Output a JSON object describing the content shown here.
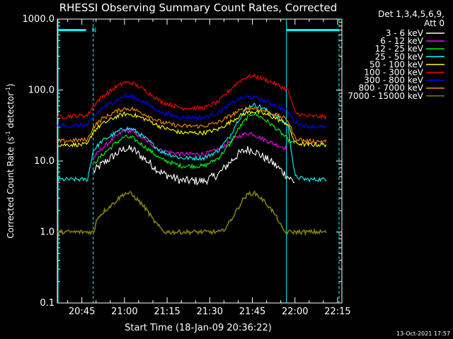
{
  "chart_data": {
    "type": "line",
    "title": "RHESSI Observing Summary Count Rates, Corrected",
    "xlabel": "Start Time (18-Jan-09 20:36:22)",
    "ylabel_main": "Corrected Count Rate (s",
    "ylabel_sup1": "-1",
    "ylabel_mid": " detector",
    "ylabel_sup2": "-1",
    "ylabel_end": ")",
    "yscale": "log",
    "ylim": [
      0.1,
      1000
    ],
    "xlim_minutes": [
      36.37,
      136.5
    ],
    "x_ticks": [
      {
        "label": "20:45",
        "m": 45
      },
      {
        "label": "21:00",
        "m": 60
      },
      {
        "label": "21:15",
        "m": 75
      },
      {
        "label": "21:30",
        "m": 90
      },
      {
        "label": "21:45",
        "m": 105
      },
      {
        "label": "22:00",
        "m": 120
      },
      {
        "label": "22:15",
        "m": 135
      }
    ],
    "y_ticks": [
      {
        "label": "1000.0",
        "v": 1000
      },
      {
        "label": "100.0",
        "v": 100
      },
      {
        "label": "10.0",
        "v": 10
      },
      {
        "label": "1.0",
        "v": 1
      },
      {
        "label": "0.1",
        "v": 0.1
      }
    ],
    "legend_header": [
      "Det 1,3,4,5,6,9,",
      "Att 0"
    ],
    "legend_position": "right",
    "series": [
      {
        "name": "3 - 6 keV",
        "color": "#ffffff",
        "x": [
          36.5,
          47,
          49,
          52,
          57,
          60,
          63,
          68,
          73,
          80,
          88,
          93,
          97,
          100,
          103,
          105,
          108,
          112,
          115,
          117.5,
          120
        ],
        "y": [
          null,
          null,
          7,
          9,
          12.5,
          15,
          14.5,
          10,
          6.8,
          5.3,
          5.2,
          6.5,
          9.5,
          12.5,
          14.5,
          14.5,
          12,
          9.5,
          7.5,
          6,
          5
        ]
      },
      {
        "name": "6 - 12 keV",
        "color": "#ff00ff",
        "x": [
          36.5,
          47,
          49,
          52,
          57,
          60,
          63,
          68,
          73,
          80,
          88,
          93,
          97,
          100,
          103,
          105,
          108,
          112,
          115,
          117.5,
          120
        ],
        "y": [
          null,
          null,
          11,
          15,
          22,
          27,
          26,
          19,
          14,
          12.5,
          12.5,
          14.5,
          18.5,
          22,
          24.5,
          24.5,
          21,
          18,
          16,
          15,
          null
        ]
      },
      {
        "name": "12 - 25 keV",
        "color": "#00ff00",
        "x": [
          36.5,
          47,
          49,
          52,
          57,
          60,
          63,
          68,
          73,
          80,
          88,
          93,
          97,
          100,
          103,
          105,
          108,
          112,
          115,
          117.5,
          120
        ],
        "y": [
          null,
          null,
          9,
          12,
          18,
          22,
          21,
          15,
          10.5,
          8.5,
          8.5,
          11,
          17,
          28,
          40,
          47,
          42,
          32,
          25,
          20,
          17
        ]
      },
      {
        "name": "25 - 50 keV",
        "color": "#00ffff",
        "x": [
          36.5,
          47,
          49,
          52,
          57,
          60,
          63,
          68,
          73,
          80,
          88,
          93,
          97,
          100,
          103,
          105,
          108,
          112,
          115,
          117.5,
          120,
          124,
          131
        ],
        "y": [
          5.5,
          5.5,
          14,
          19,
          25,
          29,
          28,
          20,
          13.5,
          11,
          11,
          14,
          22,
          38,
          55,
          62,
          58,
          46,
          38,
          32,
          6,
          5.5,
          5.5
        ]
      },
      {
        "name": "50 - 100 keV",
        "color": "#ffff00",
        "x": [
          36.5,
          47,
          49,
          52,
          57,
          60,
          63,
          68,
          73,
          80,
          88,
          93,
          97,
          100,
          103,
          105,
          108,
          112,
          115,
          117.5,
          120,
          124,
          131
        ],
        "y": [
          17,
          17,
          26,
          33,
          42,
          46,
          45,
          38,
          30,
          25,
          25,
          28,
          35,
          42,
          48,
          50,
          48,
          42,
          37,
          33,
          18,
          17,
          17
        ]
      },
      {
        "name": "100 - 300 keV",
        "color": "#ff0000",
        "x": [
          36.5,
          47,
          49,
          52,
          57,
          60,
          63,
          68,
          73,
          80,
          88,
          93,
          97,
          100,
          103,
          105,
          108,
          112,
          115,
          117.5,
          120,
          124,
          131
        ],
        "y": [
          42,
          44,
          60,
          80,
          110,
          128,
          125,
          95,
          68,
          56,
          56,
          68,
          100,
          130,
          153,
          158,
          148,
          128,
          112,
          100,
          48,
          43,
          42
        ]
      },
      {
        "name": "300 - 800 keV",
        "color": "#0000ff",
        "x": [
          36.5,
          47,
          49,
          52,
          57,
          60,
          63,
          68,
          73,
          80,
          88,
          93,
          97,
          100,
          103,
          105,
          108,
          112,
          115,
          117.5,
          120,
          124,
          131
        ],
        "y": [
          31,
          32,
          42,
          55,
          72,
          82,
          80,
          64,
          48,
          41,
          41,
          48,
          62,
          74,
          80,
          80,
          74,
          64,
          56,
          50,
          35,
          31,
          30
        ]
      },
      {
        "name": "800 - 7000 keV",
        "color": "#ff8c00",
        "x": [
          36.5,
          47,
          49,
          52,
          57,
          60,
          63,
          68,
          73,
          80,
          88,
          93,
          97,
          100,
          103,
          105,
          108,
          112,
          115,
          117.5,
          120,
          124,
          131
        ],
        "y": [
          19,
          20,
          30,
          39,
          50,
          55,
          54,
          44,
          35,
          31,
          31,
          35,
          43,
          50,
          55,
          56,
          53,
          47,
          42,
          38,
          21,
          19,
          19
        ]
      },
      {
        "name": "7000 - 15000 keV",
        "color": "#808000",
        "x": [
          36.5,
          46,
          49.5,
          50,
          53,
          56,
          58,
          60,
          62,
          64,
          66,
          68,
          70,
          72,
          74,
          80,
          88,
          94,
          96,
          98,
          100,
          102,
          104,
          106,
          108,
          110,
          112,
          114,
          115.5,
          116.5,
          121,
          131
        ],
        "y": [
          1,
          1,
          1,
          1.5,
          2,
          2.5,
          3,
          3.5,
          3.5,
          3,
          2.5,
          2,
          1.5,
          1.2,
          1,
          1,
          1,
          1,
          1.2,
          1.6,
          2.2,
          3,
          3.5,
          3.5,
          3,
          2.5,
          2,
          1.5,
          1.1,
          1,
          1,
          1
        ]
      }
    ],
    "annotations": {
      "bar_segments_minutes": [
        [
          36.6,
          46.5
        ],
        [
          117,
          135.5
        ]
      ],
      "bar_level": 700,
      "bar_label": "N",
      "solid_vlines_minutes": [
        117
      ],
      "dashed_vlines_minutes": [
        49,
        135.5
      ],
      "vline_color": "#00ffff"
    }
  },
  "footer_timestamp": "13-Oct-2021 17:57"
}
